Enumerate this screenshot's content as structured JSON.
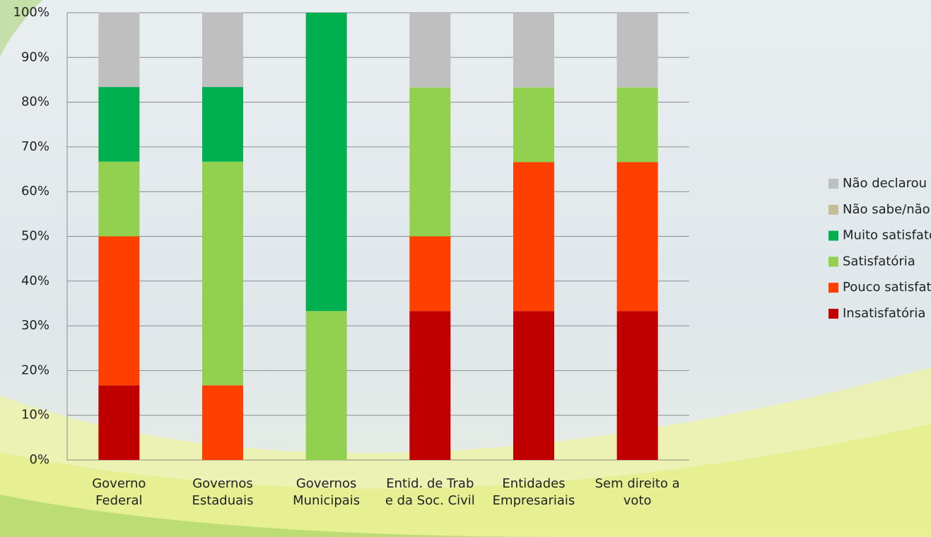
{
  "chart_data": {
    "type": "stacked_bar",
    "categories": [
      "Governo Federal",
      "Governos Estaduais",
      "Governos Municipais",
      "Entid. de Trab e da Soc. Civil",
      "Entidades Empresariais",
      "Sem direito a voto"
    ],
    "series": [
      {
        "name": "Insatisfatória",
        "color": "#c00000",
        "values": [
          16.7,
          0,
          0,
          33.3,
          33.3,
          33.3
        ]
      },
      {
        "name": "Pouco satisfatória",
        "color": "#ff3f00",
        "values": [
          33.3,
          16.7,
          0,
          16.7,
          33.3,
          33.3
        ]
      },
      {
        "name": "Satisfatória",
        "color": "#92d050",
        "values": [
          16.7,
          50,
          33.3,
          33.3,
          16.7,
          16.7
        ]
      },
      {
        "name": "Muito satisfatória",
        "color": "#00b050",
        "values": [
          16.7,
          16.7,
          66.7,
          0,
          0,
          0
        ]
      },
      {
        "name": "Não sabe/não se aplica",
        "color": "#c4bd97",
        "values": [
          0,
          0,
          0,
          0,
          0,
          0
        ]
      },
      {
        "name": "Não declarou",
        "color": "#bfbfbf",
        "values": [
          16.7,
          16.7,
          0,
          16.7,
          16.7,
          16.7
        ]
      }
    ],
    "ylim": [
      0,
      100
    ],
    "yticks": [
      {
        "value": 0,
        "label": "0%"
      },
      {
        "value": 10,
        "label": "10%"
      },
      {
        "value": 20,
        "label": "20%"
      },
      {
        "value": 30,
        "label": "30%"
      },
      {
        "value": 40,
        "label": "40%"
      },
      {
        "value": 50,
        "label": "50%"
      },
      {
        "value": 60,
        "label": "60%"
      },
      {
        "value": 70,
        "label": "70%"
      },
      {
        "value": 80,
        "label": "80%"
      },
      {
        "value": 90,
        "label": "90%"
      },
      {
        "value": 100,
        "label": "100%"
      }
    ],
    "grid": true,
    "legend": "right"
  }
}
